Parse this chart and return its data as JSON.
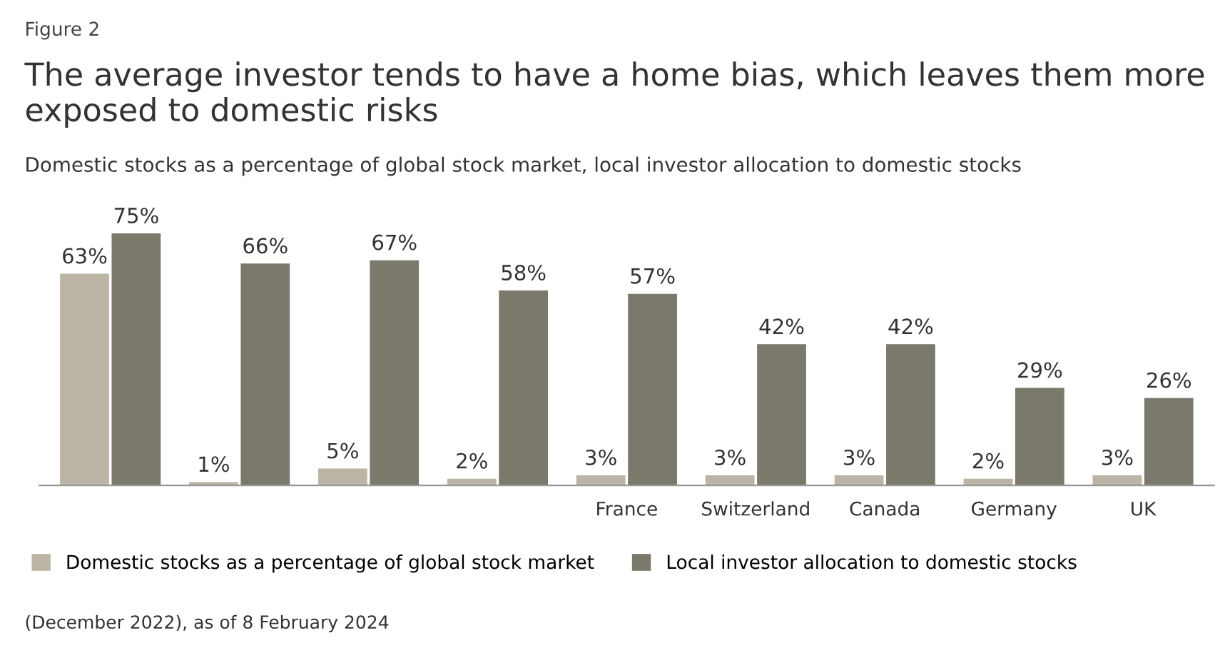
{
  "chart_data": {
    "type": "bar",
    "title": "The average investor tends to have a home bias, which leaves them more exposed to domestic risks",
    "subtitle": "Domestic stocks as a percentage of global stock market, local investor allocation to domestic stocks",
    "annotations": [
      "Figure 2",
      "(December 2022), as of 8 February 2024"
    ],
    "categories": [
      null,
      null,
      null,
      null,
      "France",
      "Switzerland",
      "Canada",
      "Germany",
      "UK"
    ],
    "series": [
      {
        "name": "Domestic stocks as a percentage of global stock market",
        "color": "#bcb5a5",
        "values": [
          63,
          1,
          5,
          2,
          3,
          3,
          3,
          2,
          3
        ],
        "value_labels": [
          "63%",
          "1%",
          "5%",
          "2%",
          "3%",
          "3%",
          "3%",
          "2%",
          "3%"
        ]
      },
      {
        "name": "Local investor allocation to domestic stocks",
        "color": "#7b796c",
        "values": [
          75,
          66,
          67,
          58,
          57,
          42,
          42,
          29,
          26
        ],
        "value_labels": [
          "75%",
          "66%",
          "67%",
          "58%",
          "57%",
          "42%",
          "42%",
          "29%",
          "26%"
        ]
      }
    ],
    "legend": "bottom",
    "grid": false
  }
}
